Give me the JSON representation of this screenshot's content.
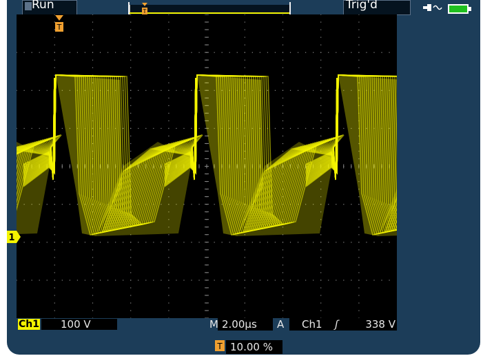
{
  "status": {
    "run": "Run",
    "trigger_state": "Trig'd"
  },
  "icons": {
    "power": "ac-power-icon",
    "battery": "battery-icon",
    "trigger": "trigger-position-icon",
    "run": "run-state-icon"
  },
  "channel": {
    "tag": "Ch1",
    "marker": "1",
    "volts_div": "100 V"
  },
  "timebase": {
    "label": "M",
    "value": "2.00µs"
  },
  "trigger": {
    "label": "A",
    "source": "Ch1",
    "slope": "ʃ",
    "level": "338 V"
  },
  "trigger_position": {
    "value": "10.00 %"
  },
  "colors": {
    "trace": "#f4f400",
    "background": "#000000",
    "bezel": "#1c3d59",
    "grid": "#8a8a8a"
  }
}
